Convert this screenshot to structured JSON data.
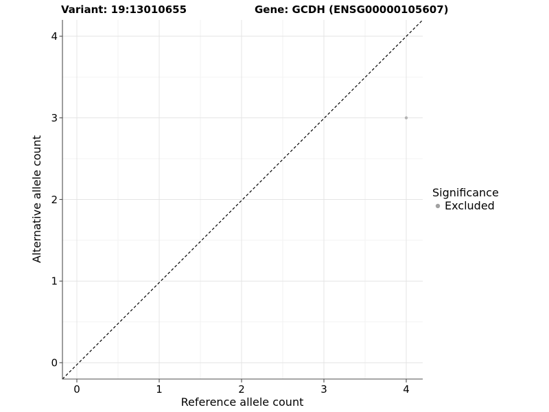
{
  "header": {
    "variant_title": "Variant: 19:13010655",
    "gene_title": "Gene: GCDH (ENSG00000105607)"
  },
  "chart_data": {
    "type": "scatter",
    "xlabel": "Reference allele count",
    "ylabel": "Alternative allele count",
    "xlim": [
      -0.2,
      4.2
    ],
    "ylim": [
      -0.2,
      4.2
    ],
    "xticks": [
      0,
      1,
      2,
      3,
      4
    ],
    "yticks": [
      0,
      1,
      2,
      3,
      4
    ],
    "x_minor_breaks": [
      0.5,
      1.5,
      2.5,
      3.5
    ],
    "y_minor_breaks": [
      0.5,
      1.5,
      2.5,
      3.5
    ],
    "grid": true,
    "legend_position": "right",
    "reference_line": {
      "type": "identity",
      "equation": "y = x",
      "style": "dashed",
      "color": "#000000"
    },
    "series": [
      {
        "name": "Excluded",
        "color": "#b3b3b3",
        "point_radius": 2.2,
        "points": [
          {
            "x": 4,
            "y": 3
          }
        ]
      }
    ],
    "legend": {
      "title": "Significance",
      "items": [
        {
          "label": "Excluded",
          "color": "#a1a1a1",
          "key_radius": 3.2
        }
      ]
    },
    "colors": {
      "grid_major": "#e4e4e4",
      "grid_minor": "#f1f1f1",
      "axis_line": "#4d4d4d",
      "tick_mark": "#4d4d4d",
      "background": "#ffffff"
    }
  }
}
